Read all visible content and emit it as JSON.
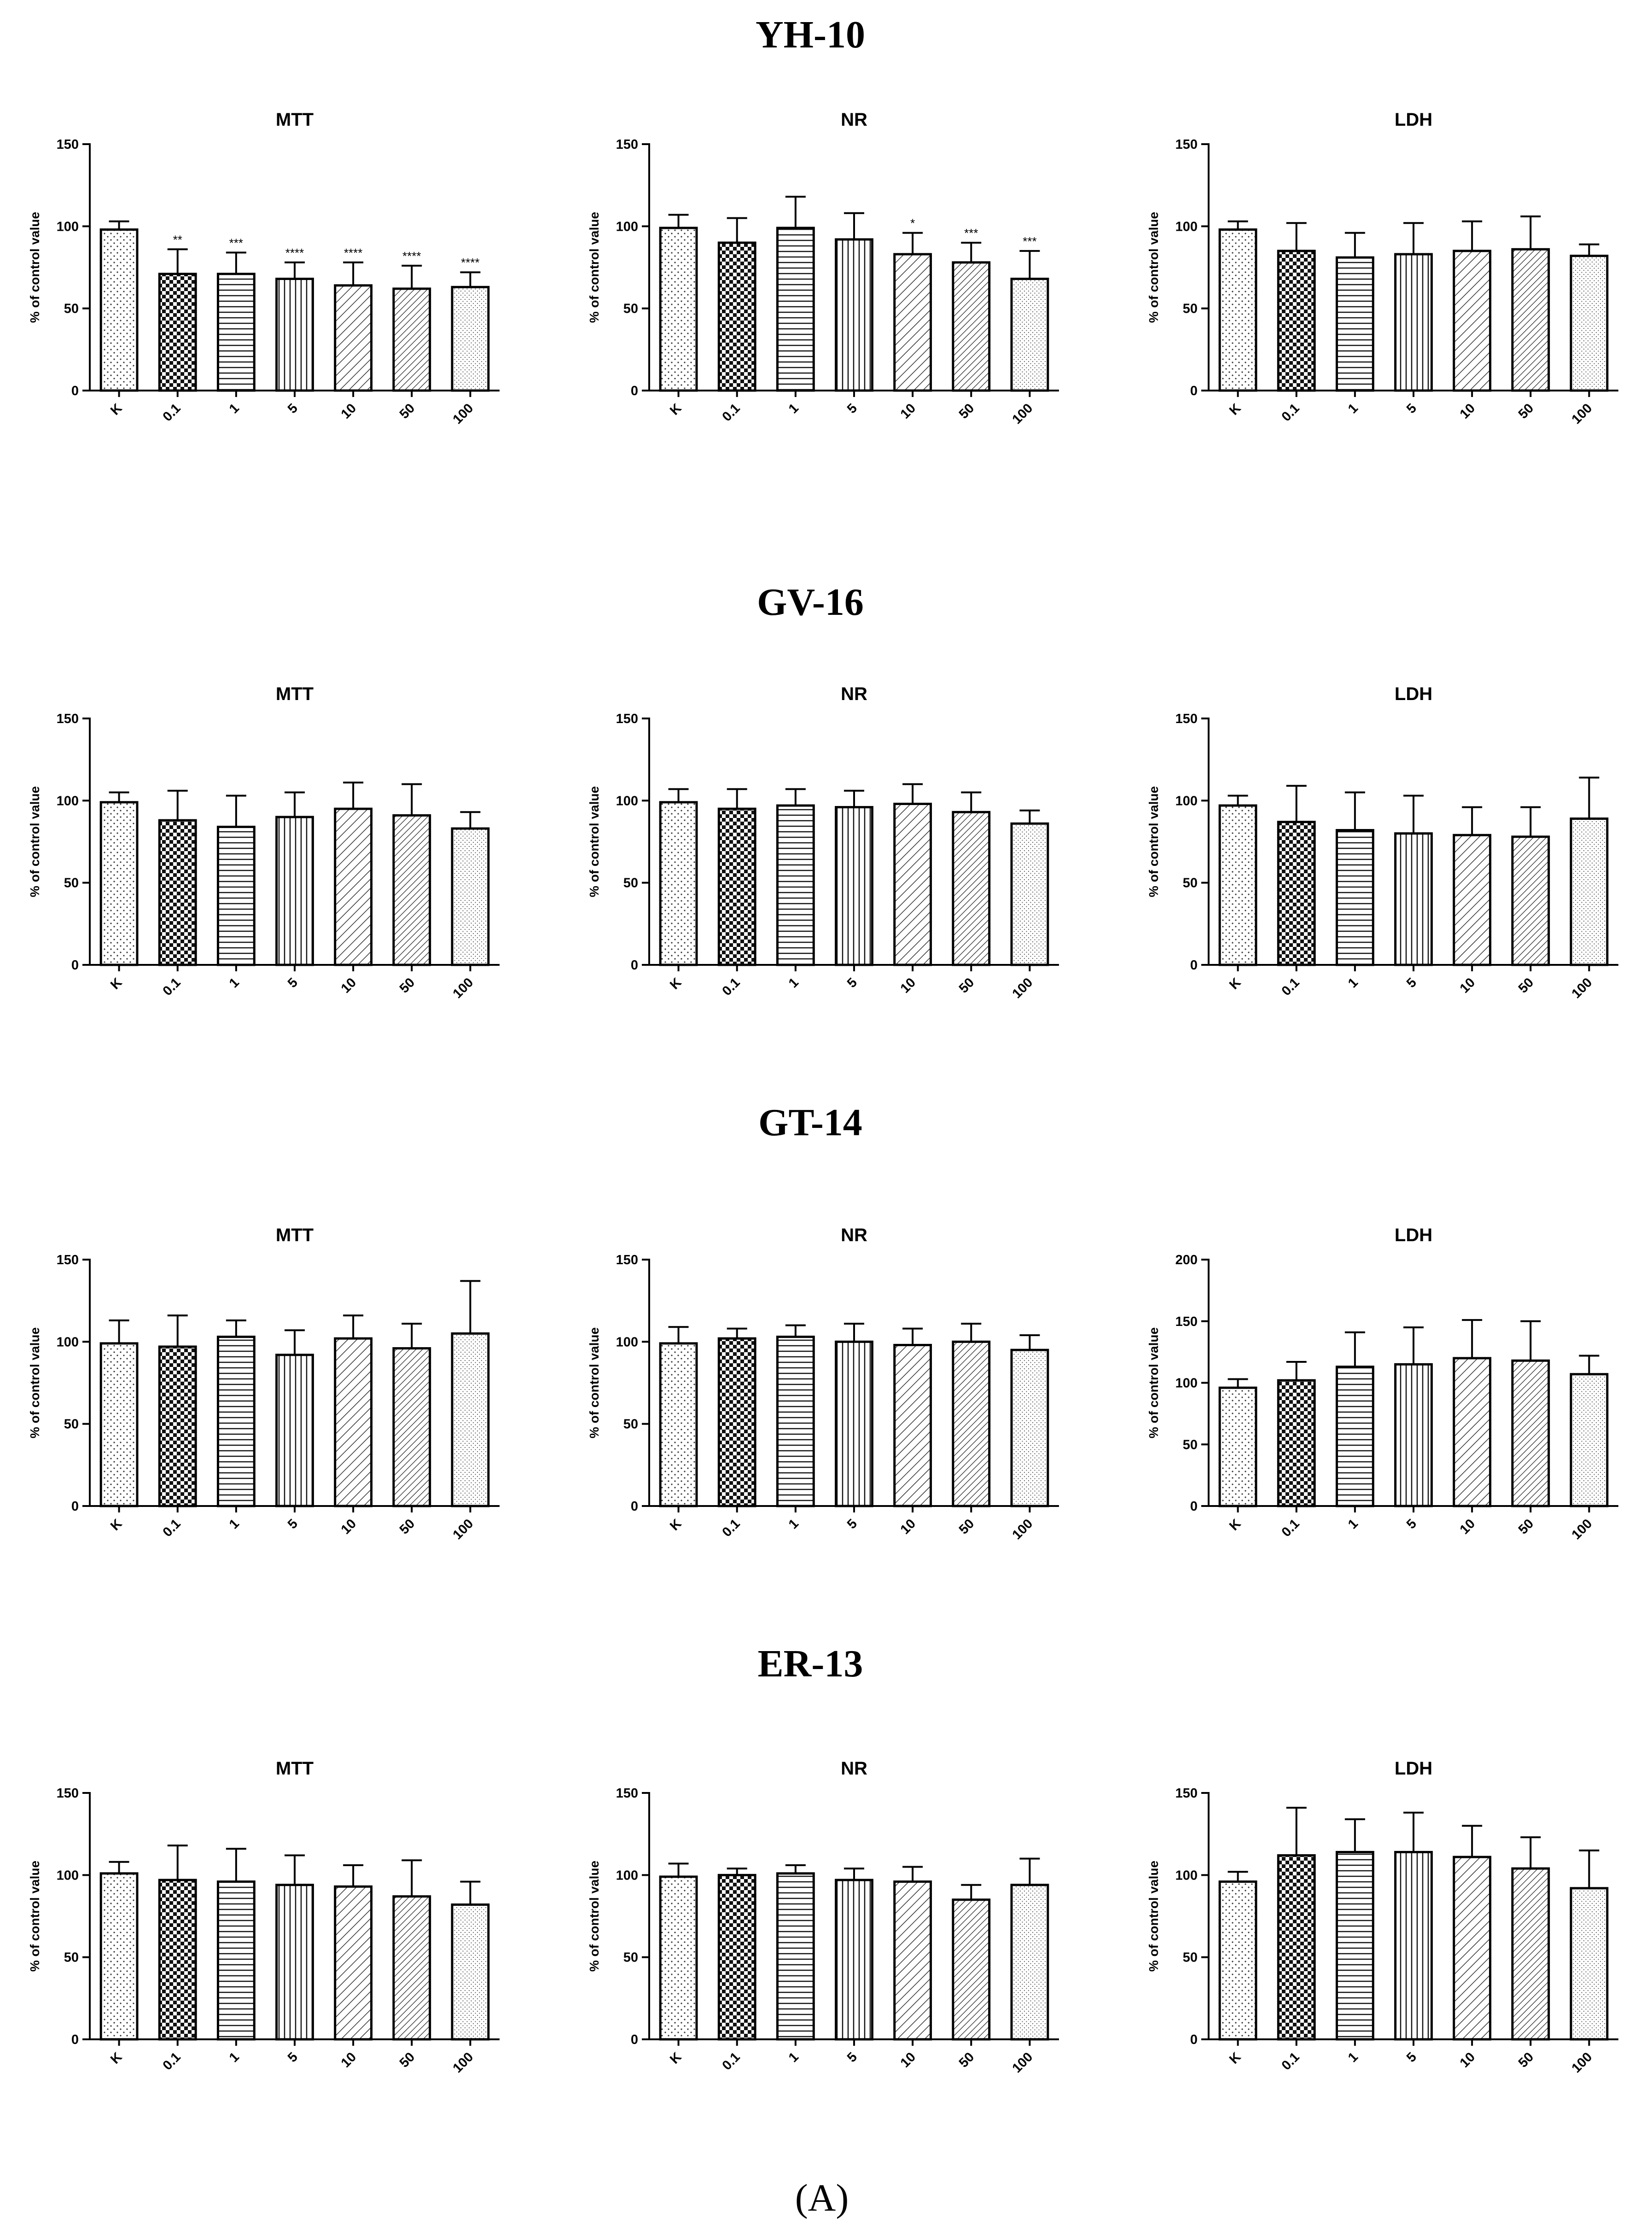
{
  "figure": {
    "caption": "(A)",
    "sections": [
      "YH-10",
      "GV-16",
      "GT-14",
      "ER-13"
    ]
  },
  "chart_data": [
    {
      "type": "bar",
      "section": "YH-10",
      "title": "MTT",
      "ylabel": "% of control value",
      "ylim": [
        0,
        150
      ],
      "yticks": [
        0,
        50,
        100,
        150
      ],
      "categories": [
        "K",
        "0.1",
        "1",
        "5",
        "10",
        "50",
        "100"
      ],
      "values": [
        98,
        71,
        71,
        68,
        64,
        62,
        63
      ],
      "errors": [
        5,
        15,
        13,
        10,
        14,
        14,
        9
      ],
      "significance": [
        "",
        "**",
        "***",
        "****",
        "****",
        "****",
        "****"
      ]
    },
    {
      "type": "bar",
      "section": "YH-10",
      "title": "NR",
      "ylabel": "% of control value",
      "ylim": [
        0,
        150
      ],
      "yticks": [
        0,
        50,
        100,
        150
      ],
      "categories": [
        "K",
        "0.1",
        "1",
        "5",
        "10",
        "50",
        "100"
      ],
      "values": [
        99,
        90,
        99,
        92,
        83,
        78,
        68
      ],
      "errors": [
        8,
        15,
        19,
        16,
        13,
        12,
        17
      ],
      "significance": [
        "",
        "",
        "",
        "",
        "*",
        "***",
        "***"
      ]
    },
    {
      "type": "bar",
      "section": "YH-10",
      "title": "LDH",
      "ylabel": "% of control value",
      "ylim": [
        0,
        150
      ],
      "yticks": [
        0,
        50,
        100,
        150
      ],
      "categories": [
        "K",
        "0.1",
        "1",
        "5",
        "10",
        "50",
        "100"
      ],
      "values": [
        98,
        85,
        81,
        83,
        85,
        86,
        82
      ],
      "errors": [
        5,
        17,
        15,
        19,
        18,
        20,
        7
      ],
      "significance": [
        "",
        "",
        "",
        "",
        "",
        "",
        ""
      ]
    },
    {
      "type": "bar",
      "section": "GV-16",
      "title": "MTT",
      "ylabel": "% of control value",
      "ylim": [
        0,
        150
      ],
      "yticks": [
        0,
        50,
        100,
        150
      ],
      "categories": [
        "K",
        "0.1",
        "1",
        "5",
        "10",
        "50",
        "100"
      ],
      "values": [
        99,
        88,
        84,
        90,
        95,
        91,
        83
      ],
      "errors": [
        6,
        18,
        19,
        15,
        16,
        19,
        10
      ],
      "significance": [
        "",
        "",
        "",
        "",
        "",
        "",
        ""
      ]
    },
    {
      "type": "bar",
      "section": "GV-16",
      "title": "NR",
      "ylabel": "% of control value",
      "ylim": [
        0,
        150
      ],
      "yticks": [
        0,
        50,
        100,
        150
      ],
      "categories": [
        "K",
        "0.1",
        "1",
        "5",
        "10",
        "50",
        "100"
      ],
      "values": [
        99,
        95,
        97,
        96,
        98,
        93,
        86
      ],
      "errors": [
        8,
        12,
        10,
        10,
        12,
        12,
        8
      ],
      "significance": [
        "",
        "",
        "",
        "",
        "",
        "",
        ""
      ]
    },
    {
      "type": "bar",
      "section": "GV-16",
      "title": "LDH",
      "ylabel": "% of control value",
      "ylim": [
        0,
        150
      ],
      "yticks": [
        0,
        50,
        100,
        150
      ],
      "categories": [
        "K",
        "0.1",
        "1",
        "5",
        "10",
        "50",
        "100"
      ],
      "values": [
        97,
        87,
        82,
        80,
        79,
        78,
        89
      ],
      "errors": [
        6,
        22,
        23,
        23,
        17,
        18,
        25
      ],
      "significance": [
        "",
        "",
        "",
        "",
        "",
        "",
        ""
      ]
    },
    {
      "type": "bar",
      "section": "GT-14",
      "title": "MTT",
      "ylabel": "% of control value",
      "ylim": [
        0,
        150
      ],
      "yticks": [
        0,
        50,
        100,
        150
      ],
      "categories": [
        "K",
        "0.1",
        "1",
        "5",
        "10",
        "50",
        "100"
      ],
      "values": [
        99,
        97,
        103,
        92,
        102,
        96,
        105
      ],
      "errors": [
        14,
        19,
        10,
        15,
        14,
        15,
        32
      ],
      "significance": [
        "",
        "",
        "",
        "",
        "",
        "",
        ""
      ]
    },
    {
      "type": "bar",
      "section": "GT-14",
      "title": "NR",
      "ylabel": "% of control value",
      "ylim": [
        0,
        150
      ],
      "yticks": [
        0,
        50,
        100,
        150
      ],
      "categories": [
        "K",
        "0.1",
        "1",
        "5",
        "10",
        "50",
        "100"
      ],
      "values": [
        99,
        102,
        103,
        100,
        98,
        100,
        95
      ],
      "errors": [
        10,
        6,
        7,
        11,
        10,
        11,
        9
      ],
      "significance": [
        "",
        "",
        "",
        "",
        "",
        "",
        ""
      ]
    },
    {
      "type": "bar",
      "section": "GT-14",
      "title": "LDH",
      "ylabel": "% of control value",
      "ylim": [
        0,
        200
      ],
      "yticks": [
        0,
        50,
        100,
        150,
        200
      ],
      "categories": [
        "K",
        "0.1",
        "1",
        "5",
        "10",
        "50",
        "100"
      ],
      "values": [
        96,
        102,
        113,
        115,
        120,
        118,
        107
      ],
      "errors": [
        7,
        15,
        28,
        30,
        31,
        32,
        15
      ],
      "significance": [
        "",
        "",
        "",
        "",
        "",
        "",
        ""
      ]
    },
    {
      "type": "bar",
      "section": "ER-13",
      "title": "MTT",
      "ylabel": "% of control value",
      "ylim": [
        0,
        150
      ],
      "yticks": [
        0,
        50,
        100,
        150
      ],
      "categories": [
        "K",
        "0.1",
        "1",
        "5",
        "10",
        "50",
        "100"
      ],
      "values": [
        101,
        97,
        96,
        94,
        93,
        87,
        82
      ],
      "errors": [
        7,
        21,
        20,
        18,
        13,
        22,
        14
      ],
      "significance": [
        "",
        "",
        "",
        "",
        "",
        "",
        ""
      ]
    },
    {
      "type": "bar",
      "section": "ER-13",
      "title": "NR",
      "ylabel": "% of control value",
      "ylim": [
        0,
        150
      ],
      "yticks": [
        0,
        50,
        100,
        150
      ],
      "categories": [
        "K",
        "0.1",
        "1",
        "5",
        "10",
        "50",
        "100"
      ],
      "values": [
        99,
        100,
        101,
        97,
        96,
        85,
        94
      ],
      "errors": [
        8,
        4,
        5,
        7,
        9,
        9,
        16
      ],
      "significance": [
        "",
        "",
        "",
        "",
        "",
        "",
        ""
      ]
    },
    {
      "type": "bar",
      "section": "ER-13",
      "title": "LDH",
      "ylabel": "% of control value",
      "ylim": [
        0,
        150
      ],
      "yticks": [
        0,
        50,
        100,
        150
      ],
      "categories": [
        "K",
        "0.1",
        "1",
        "5",
        "10",
        "50",
        "100"
      ],
      "values": [
        96,
        112,
        114,
        114,
        111,
        104,
        92
      ],
      "errors": [
        6,
        29,
        20,
        24,
        19,
        19,
        23
      ],
      "significance": [
        "",
        "",
        "",
        "",
        "",
        "",
        ""
      ]
    }
  ]
}
